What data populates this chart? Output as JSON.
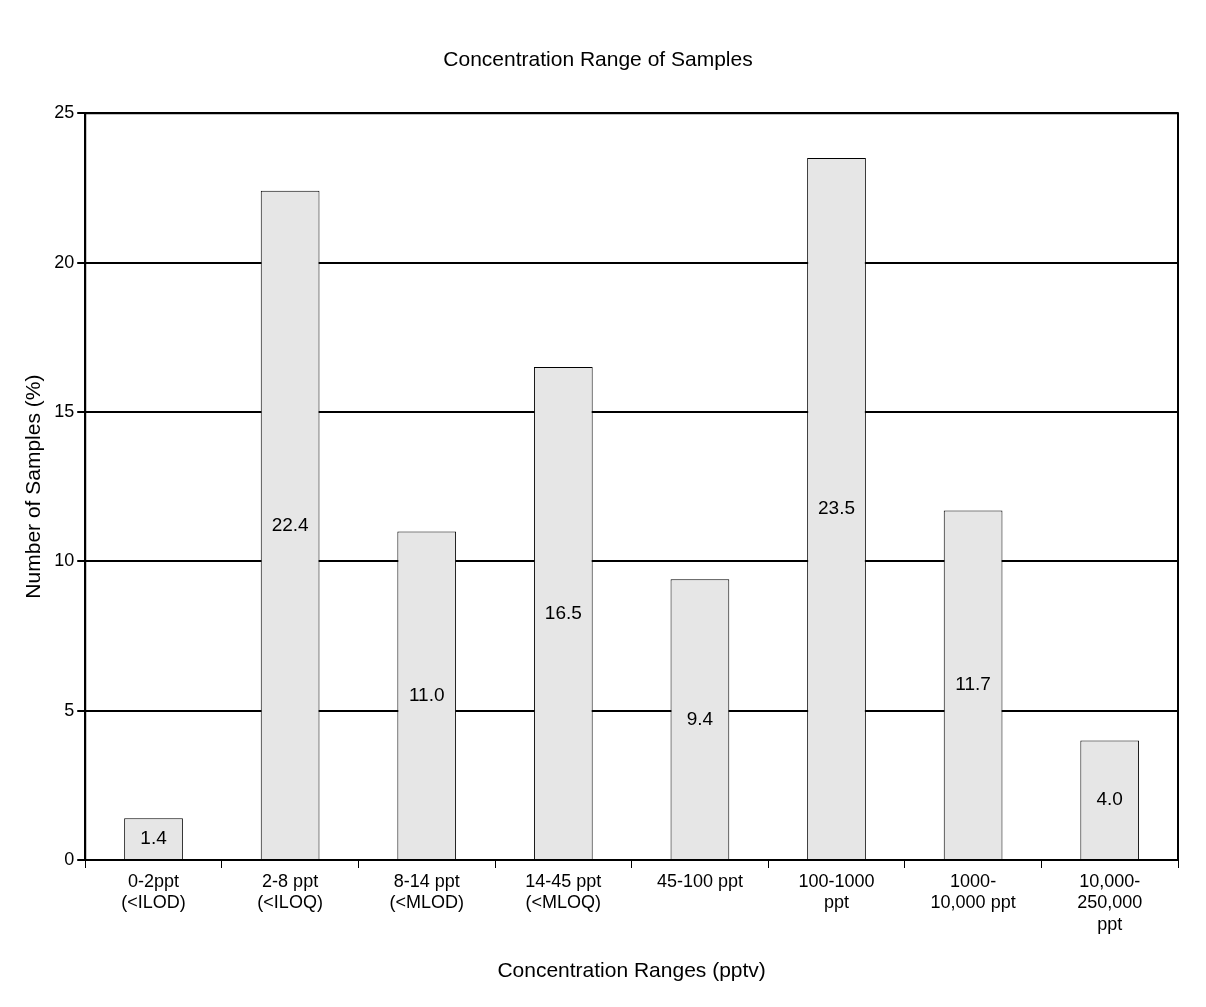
{
  "chart_data": {
    "type": "bar",
    "title": "Concentration Range of Samples",
    "xlabel": "Concentration Ranges (pptv)",
    "ylabel": "Number of Samples (%)",
    "categories": [
      "0-2ppt\n(<ILOD)",
      "2-8 ppt\n(<ILOQ)",
      "8-14 ppt\n(<MLOD)",
      "14-45 ppt\n(<MLOQ)",
      "45-100 ppt",
      "100-1000\nppt",
      "1000-\n10,000 ppt",
      "10,000-\n250,000\nppt"
    ],
    "values": [
      1.4,
      22.4,
      11.0,
      16.5,
      9.4,
      23.5,
      11.7,
      4.0
    ],
    "value_labels": [
      "1.4",
      "22.4",
      "11.0",
      "16.5",
      "9.4",
      "23.5",
      "11.7",
      "4.0"
    ],
    "color": "#e6e6e6",
    "ylim": [
      0,
      25
    ],
    "yticks": [
      0,
      5,
      10,
      15,
      20,
      25
    ],
    "grid": "y",
    "legend": false
  }
}
